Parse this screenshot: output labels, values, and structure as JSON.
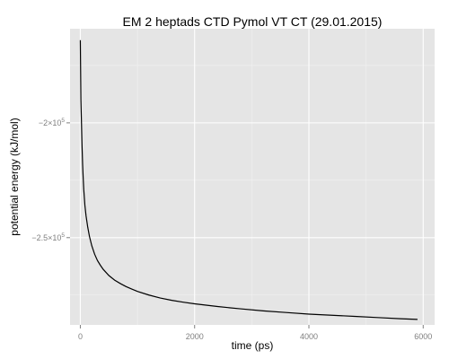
{
  "chart_data": {
    "type": "line",
    "title": "EM 2 heptads CTD Pymol VT CT (29.01.2015)",
    "xlabel": "time (ps)",
    "ylabel": "potential energy (kJ/mol)",
    "xlim": [
      -180,
      6200
    ],
    "ylim": [
      -288000,
      -159000
    ],
    "xticks": [
      0,
      2000,
      4000,
      6000
    ],
    "xtick_labels": [
      "0",
      "2000",
      "4000",
      "6000"
    ],
    "yticks": [
      -200000,
      -250000
    ],
    "ytick_labels": [
      {
        "base": "−2×10",
        "exp": "5"
      },
      {
        "base": "−2.5×10",
        "exp": "5"
      }
    ],
    "grid": true,
    "legend": "none",
    "colors": {
      "panel": "#e5e5e5",
      "line": "#000000"
    },
    "series": [
      {
        "x": [
          0,
          10,
          20,
          30,
          40,
          50,
          60,
          80,
          100,
          130,
          160,
          200,
          250,
          300,
          350,
          400,
          500,
          600,
          700,
          800,
          900,
          1000,
          1200,
          1400,
          1600,
          1800,
          2000,
          2400,
          2800,
          3200,
          3600,
          4000,
          4400,
          4800,
          5200,
          5600,
          5900
        ],
        "y": [
          -164000,
          -190000,
          -200000,
          -210000,
          -218000,
          -224000,
          -229000,
          -236000,
          -240500,
          -245500,
          -249500,
          -253500,
          -257200,
          -260000,
          -262000,
          -263800,
          -266500,
          -268500,
          -270000,
          -271300,
          -272400,
          -273400,
          -275000,
          -276300,
          -277300,
          -278100,
          -278800,
          -280000,
          -281000,
          -281900,
          -282600,
          -283300,
          -283800,
          -284300,
          -284800,
          -285300,
          -285600
        ]
      }
    ]
  }
}
